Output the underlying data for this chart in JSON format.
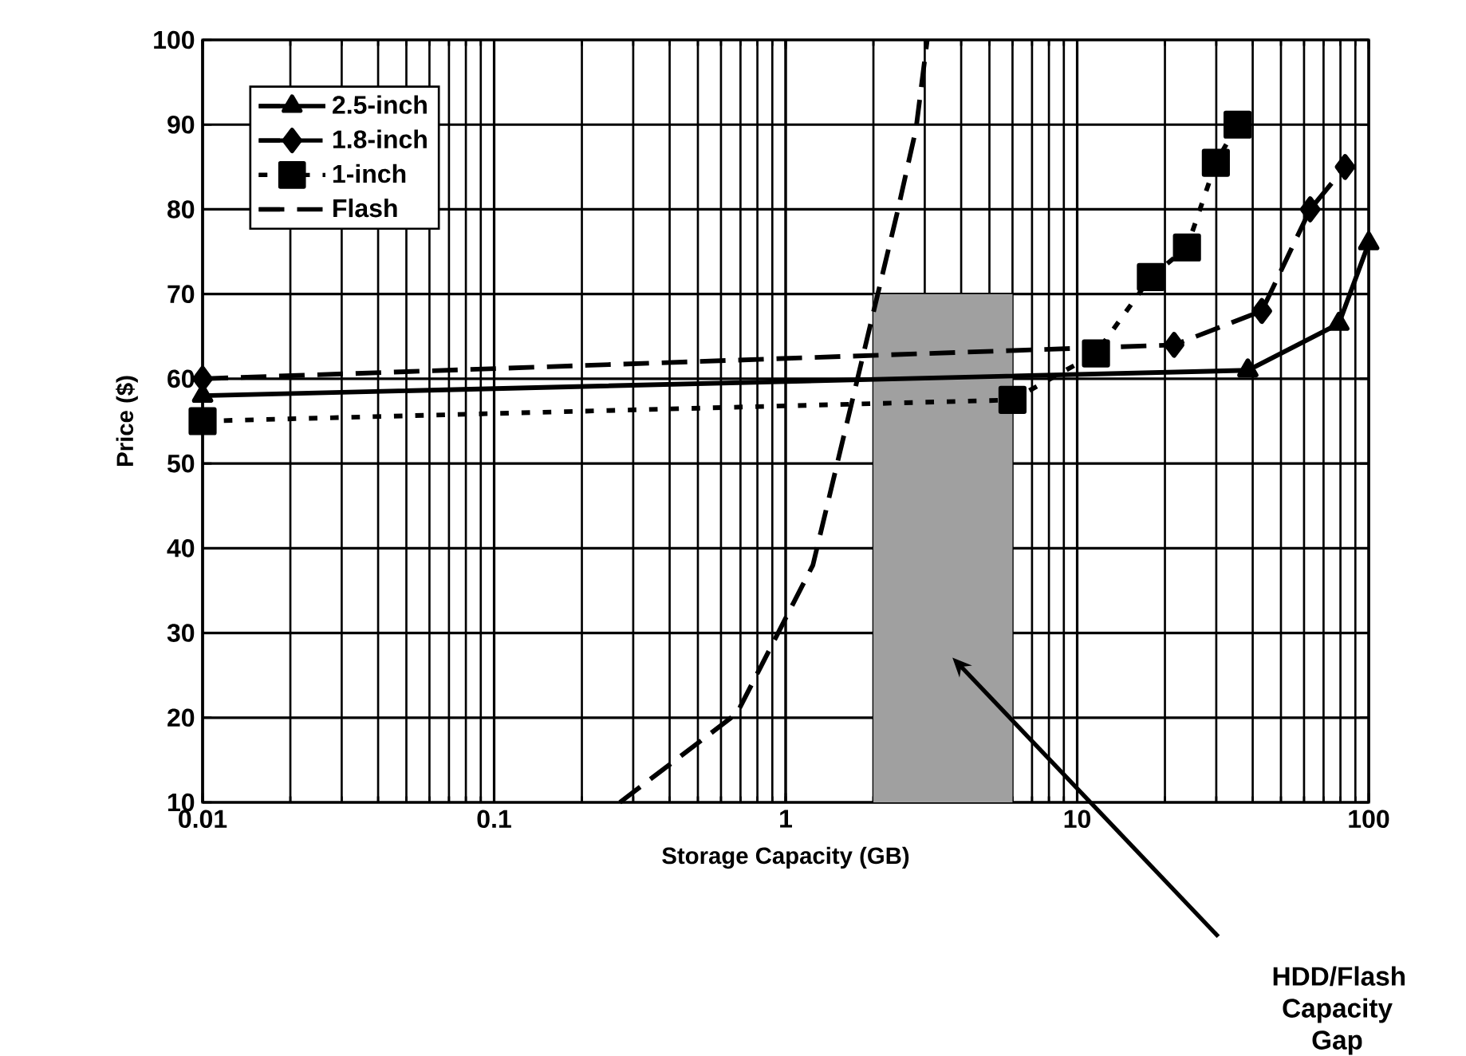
{
  "chart_data": {
    "type": "line",
    "xlabel": "Storage Capacity (GB)",
    "ylabel": "Price ($)",
    "log": "x",
    "xlim": [
      0.01,
      100
    ],
    "ylim": [
      10,
      100
    ],
    "xticks": [
      0.01,
      0.1,
      1,
      10,
      100
    ],
    "yticks": [
      10,
      20,
      30,
      40,
      50,
      60,
      70,
      80,
      90,
      100
    ],
    "grid": true,
    "legend": "top left",
    "series": [
      {
        "type": "area",
        "color": "#a0a0a0",
        "x": [
          2,
          6
        ],
        "values": [
          70,
          70
        ]
      },
      {
        "name": "2.5-inch",
        "color": "#000000",
        "marker": "triangle",
        "line_style": "solid",
        "x": [
          0.01,
          38.5,
          79,
          100
        ],
        "values": [
          58,
          61,
          66.5,
          76
        ]
      },
      {
        "name": "1.8-inch",
        "color": "#000000",
        "marker": "diamond",
        "line_style": "dashed",
        "x": [
          0.01,
          21.5,
          43,
          63,
          83
        ],
        "values": [
          60,
          64,
          68,
          80,
          85
        ]
      },
      {
        "name": "1-inch",
        "color": "#000000",
        "marker": "square",
        "line_style": "dotted",
        "x": [
          0.01,
          6,
          11.6,
          17.9,
          23.8,
          29.9,
          35.5
        ],
        "values": [
          55,
          57.5,
          63,
          72,
          75.5,
          85.5,
          90
        ]
      },
      {
        "name": "Flash",
        "color": "#000000",
        "marker": "none",
        "line_style": "dashed",
        "x": [
          0.27,
          0.68,
          1.24,
          2.41,
          2.8,
          3.06
        ],
        "values": [
          10,
          20.5,
          38,
          79.5,
          89.5,
          100
        ]
      }
    ],
    "annotations": [
      "HDD/Flash Capacity Gap"
    ]
  }
}
